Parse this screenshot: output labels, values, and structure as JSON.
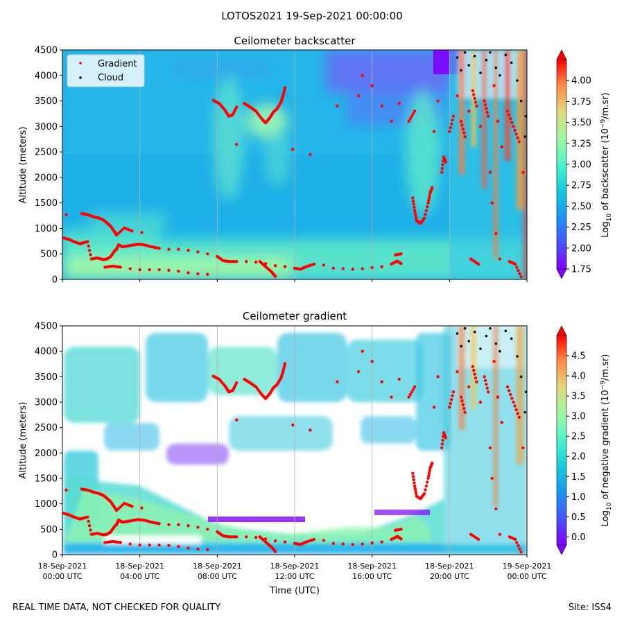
{
  "figure": {
    "suptitle": "LOTOS2021 19-Sep-2021 00:00:00",
    "footer_left": "REAL TIME DATA, NOT CHECKED FOR QUALITY",
    "footer_right": "Site: ISS4"
  },
  "chart_data": [
    {
      "type": "heatmap",
      "title": "Ceilometer backscatter",
      "xlabel": "",
      "ylabel": "Altitude (meters)",
      "ylim": [
        0,
        4500
      ],
      "y_ticks": [
        0,
        500,
        1000,
        1500,
        2000,
        2500,
        3000,
        3500,
        4000,
        4500
      ],
      "xlim_hours": [
        0,
        24
      ],
      "x_ticks_hours": [
        0,
        4,
        8,
        12,
        16,
        20,
        24
      ],
      "colorbar": {
        "label_main": "Log",
        "label_sub": "10",
        "label_mid": " of backscatter (10",
        "label_sup": "−9",
        "label_end": "/m.sr)",
        "range": [
          1.75,
          4.25
        ],
        "ticks": [
          1.75,
          2.0,
          2.25,
          2.5,
          2.75,
          3.0,
          3.25,
          3.5,
          3.75,
          4.0
        ],
        "tick_labels": [
          "1.75",
          "2.00",
          "2.25",
          "2.50",
          "2.75",
          "3.00",
          "3.25",
          "3.50",
          "3.75",
          "4.00"
        ]
      },
      "legend": {
        "position": "top-left",
        "entries": [
          {
            "label": "Gradient",
            "color": "#ff0000"
          },
          {
            "label": "Cloud",
            "color": "#000000"
          }
        ]
      },
      "field_description": "mostly ~2.4 (blue); boundary layer 2.7–2.9 below 500 m; purple ~1.9 above 3500 m after 14 UTC; cloud returns >4 after 20 UTC"
    },
    {
      "type": "heatmap",
      "title": "Ceilometer gradient",
      "xlabel": "Time (UTC)",
      "ylabel": "Altitude (meters)",
      "ylim": [
        0,
        4500
      ],
      "y_ticks": [
        0,
        500,
        1000,
        1500,
        2000,
        2500,
        3000,
        3500,
        4000,
        4500
      ],
      "xlim_hours": [
        0,
        24
      ],
      "x_ticks_hours": [
        0,
        4,
        8,
        12,
        16,
        20,
        24
      ],
      "x_tick_labels": [
        [
          "18-Sep-2021",
          "00:00 UTC"
        ],
        [
          "18-Sep-2021",
          "04:00 UTC"
        ],
        [
          "18-Sep-2021",
          "08:00 UTC"
        ],
        [
          "18-Sep-2021",
          "12:00 UTC"
        ],
        [
          "18-Sep-2021",
          "16:00 UTC"
        ],
        [
          "18-Sep-2021",
          "20:00 UTC"
        ],
        [
          "19-Sep-2021",
          "00:00 UTC"
        ]
      ],
      "colorbar": {
        "label_main": "Log",
        "label_sub": "10",
        "label_mid": " of negative gradient (10",
        "label_sup": "−9",
        "label_end": "/m.sr)",
        "range": [
          -0.2,
          5.0
        ],
        "ticks": [
          0.0,
          0.5,
          1.0,
          1.5,
          2.0,
          2.5,
          3.0,
          3.5,
          4.0,
          4.5
        ],
        "tick_labels": [
          "0.0",
          "0.5",
          "1.0",
          "1.5",
          "2.0",
          "2.5",
          "3.0",
          "3.5",
          "4.0",
          "4.5"
        ]
      }
    }
  ],
  "series": {
    "gradient_tracks": [
      {
        "name": "low_layer",
        "points": [
          [
            0.0,
            820
          ],
          [
            0.3,
            790
          ],
          [
            0.6,
            740
          ],
          [
            0.9,
            700
          ],
          [
            1.1,
            720
          ],
          [
            1.3,
            740
          ],
          [
            1.5,
            400
          ],
          [
            1.8,
            420
          ],
          [
            2.1,
            390
          ],
          [
            2.3,
            400
          ],
          [
            2.5,
            450
          ],
          [
            2.7,
            560
          ],
          [
            2.8,
            590
          ],
          [
            2.9,
            680
          ],
          [
            3.1,
            640
          ],
          [
            3.3,
            650
          ],
          [
            3.6,
            670
          ],
          [
            3.9,
            690
          ],
          [
            4.2,
            680
          ],
          [
            4.6,
            640
          ],
          [
            5.0,
            610
          ],
          [
            5.5,
            590
          ],
          [
            6.0,
            590
          ],
          [
            6.5,
            570
          ],
          [
            7.0,
            540
          ],
          [
            7.5,
            500
          ],
          [
            8.0,
            450
          ],
          [
            8.3,
            370
          ],
          [
            8.6,
            350
          ],
          [
            9.0,
            350
          ],
          [
            9.5,
            350
          ],
          [
            10.0,
            340
          ],
          [
            10.5,
            310
          ],
          [
            11.0,
            270
          ],
          [
            11.5,
            250
          ],
          [
            12.0,
            220
          ],
          [
            12.3,
            200
          ],
          [
            12.6,
            250
          ],
          [
            13.0,
            300
          ],
          [
            13.5,
            280
          ],
          [
            14.0,
            220
          ],
          [
            14.5,
            210
          ],
          [
            15.0,
            200
          ],
          [
            15.5,
            210
          ],
          [
            16.0,
            230
          ],
          [
            16.5,
            250
          ],
          [
            17.0,
            300
          ],
          [
            17.3,
            360
          ],
          [
            17.5,
            310
          ]
        ]
      },
      {
        "name": "surface_layer",
        "points": [
          [
            2.2,
            240
          ],
          [
            2.6,
            260
          ],
          [
            3.0,
            240
          ],
          [
            3.5,
            210
          ],
          [
            4.0,
            190
          ],
          [
            4.5,
            190
          ],
          [
            5.0,
            190
          ],
          [
            5.5,
            180
          ],
          [
            6.0,
            160
          ],
          [
            6.5,
            130
          ],
          [
            7.0,
            110
          ],
          [
            7.5,
            100
          ]
        ]
      },
      {
        "name": "residual_layer",
        "points": [
          [
            0.2,
            1270
          ],
          [
            1.0,
            1290
          ],
          [
            1.3,
            1270
          ],
          [
            1.6,
            1230
          ],
          [
            1.9,
            1200
          ],
          [
            2.1,
            1170
          ],
          [
            2.3,
            1110
          ],
          [
            2.5,
            1040
          ],
          [
            2.7,
            930
          ],
          [
            2.8,
            870
          ],
          [
            3.2,
            1010
          ],
          [
            3.6,
            950
          ],
          [
            4.1,
            920
          ]
        ]
      },
      {
        "name": "mid_segment_a",
        "points": [
          [
            7.8,
            3510
          ],
          [
            8.1,
            3450
          ],
          [
            8.4,
            3320
          ],
          [
            8.6,
            3200
          ],
          [
            8.8,
            3230
          ],
          [
            9.0,
            3380
          ]
        ]
      },
      {
        "name": "mid_segment_b",
        "points": [
          [
            9.4,
            3450
          ],
          [
            9.7,
            3380
          ],
          [
            10.0,
            3300
          ],
          [
            10.3,
            3150
          ],
          [
            10.5,
            3070
          ],
          [
            10.7,
            3160
          ],
          [
            10.9,
            3280
          ],
          [
            11.1,
            3350
          ],
          [
            11.3,
            3480
          ],
          [
            11.4,
            3600
          ],
          [
            11.5,
            3760
          ]
        ]
      },
      {
        "name": "collapse",
        "points": [
          [
            10.2,
            350
          ],
          [
            10.5,
            250
          ],
          [
            10.8,
            150
          ],
          [
            11.0,
            60
          ]
        ]
      },
      {
        "name": "scatter_mid",
        "points": [
          [
            9.0,
            2650
          ],
          [
            11.9,
            2550
          ],
          [
            12.8,
            2450
          ],
          [
            14.2,
            3400
          ],
          [
            15.3,
            3600
          ],
          [
            15.5,
            4000
          ],
          [
            16.0,
            3800
          ],
          [
            16.5,
            3400
          ],
          [
            17.0,
            3100
          ],
          [
            17.4,
            3450
          ],
          [
            17.9,
            3100
          ],
          [
            18.2,
            3300
          ]
        ]
      },
      {
        "name": "late_hook",
        "points": [
          [
            18.1,
            1600
          ],
          [
            18.2,
            1350
          ],
          [
            18.3,
            1150
          ],
          [
            18.5,
            1100
          ],
          [
            18.7,
            1200
          ],
          [
            18.9,
            1500
          ],
          [
            19.0,
            1700
          ],
          [
            19.1,
            1800
          ]
        ]
      },
      {
        "name": "late_scatter",
        "points": [
          [
            17.2,
            480
          ],
          [
            17.5,
            500
          ],
          [
            19.2,
            2900
          ],
          [
            19.4,
            3500
          ],
          [
            19.6,
            2100
          ],
          [
            19.7,
            2400
          ],
          [
            19.8,
            2300
          ],
          [
            20.0,
            2900
          ],
          [
            20.2,
            3200
          ],
          [
            20.4,
            3600
          ],
          [
            20.6,
            3100
          ],
          [
            20.8,
            2800
          ],
          [
            21.0,
            3300
          ],
          [
            21.2,
            3700
          ],
          [
            21.4,
            3400
          ],
          [
            21.6,
            3000
          ],
          [
            21.8,
            3500
          ],
          [
            22.0,
            3200
          ],
          [
            22.3,
            3800
          ],
          [
            22.5,
            3100
          ],
          [
            22.7,
            2600
          ],
          [
            23.0,
            3300
          ],
          [
            23.3,
            3000
          ],
          [
            23.6,
            2700
          ],
          [
            23.8,
            2100
          ],
          [
            21.1,
            400
          ],
          [
            21.5,
            300
          ],
          [
            22.1,
            2100
          ],
          [
            22.2,
            1500
          ],
          [
            22.4,
            900
          ],
          [
            22.6,
            400
          ],
          [
            23.1,
            350
          ],
          [
            23.4,
            300
          ],
          [
            23.7,
            50
          ]
        ]
      }
    ],
    "cloud_points": [
      [
        20.4,
        4350
      ],
      [
        20.6,
        4100
      ],
      [
        20.8,
        4450
      ],
      [
        21.0,
        4200
      ],
      [
        21.3,
        4380
      ],
      [
        21.6,
        4050
      ],
      [
        21.9,
        4300
      ],
      [
        22.1,
        4450
      ],
      [
        22.4,
        4150
      ],
      [
        22.6,
        4000
      ],
      [
        22.9,
        4400
      ],
      [
        23.2,
        4250
      ],
      [
        23.5,
        3900
      ],
      [
        23.7,
        3500
      ],
      [
        23.9,
        2800
      ],
      [
        23.95,
        3200
      ]
    ]
  }
}
